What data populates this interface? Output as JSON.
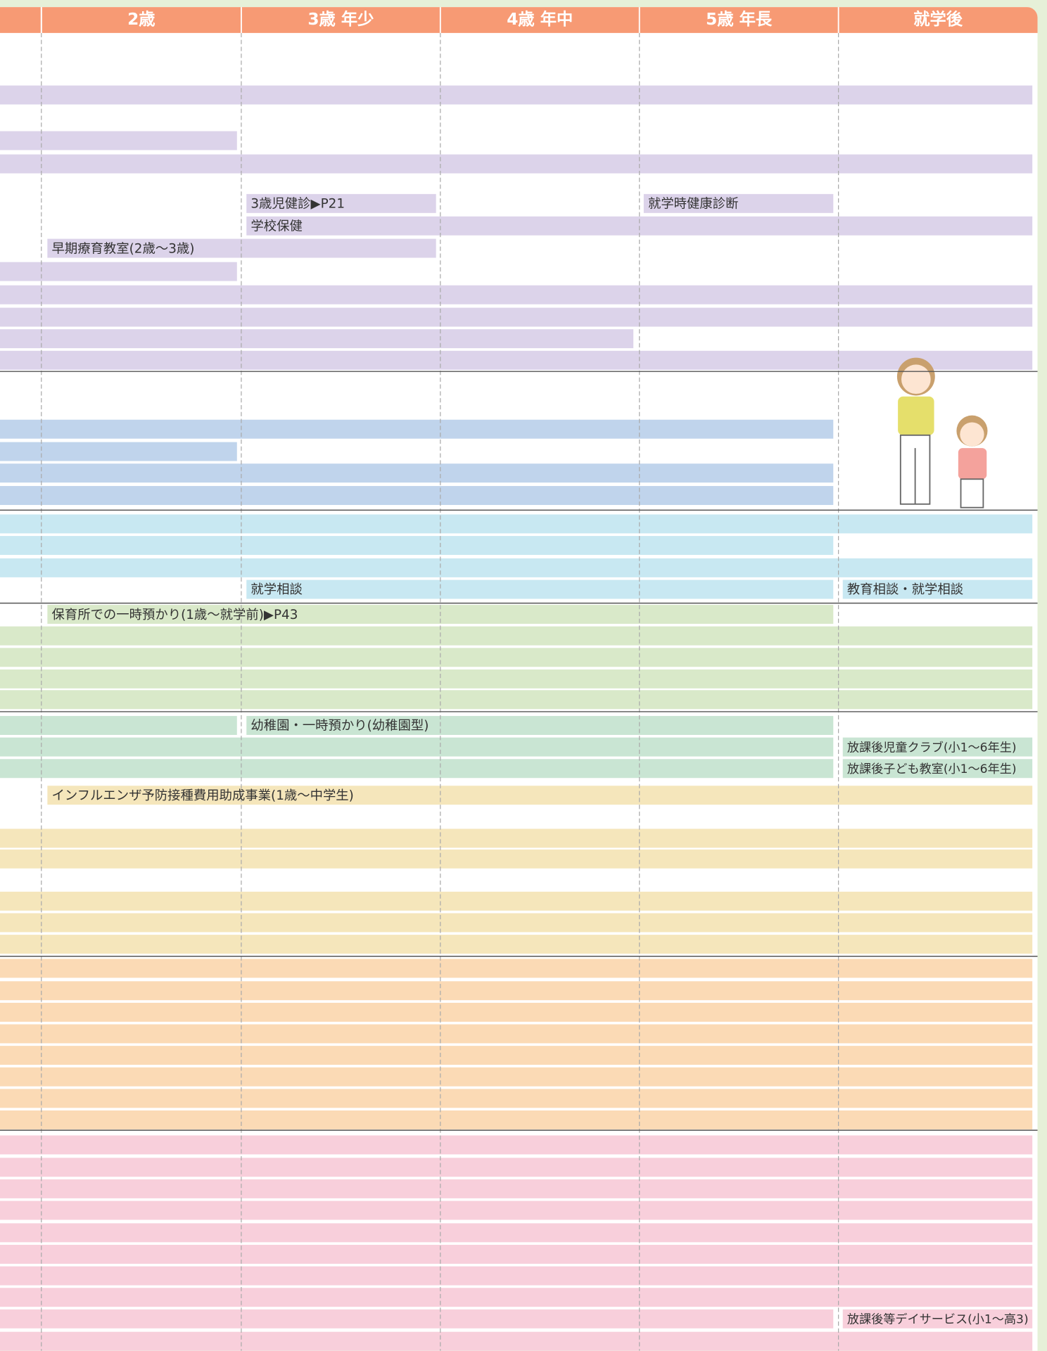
{
  "header": {
    "columns": [
      "2歳",
      "3歳 年少",
      "4歳 年中",
      "5歳 年長",
      "就学後"
    ]
  },
  "labels": [
    "3歳児健診▶P21",
    "就学時健康診断",
    "学校保健",
    "早期療育教室(2歳〜3歳)",
    "就学相談",
    "教育相談・就学相談",
    "保育所での一時預かり(1歳〜就学前)▶P43",
    "幼稚園・一時預かり(幼稚園型)",
    "放課後児童クラブ(小1〜6年生)",
    "放課後子ども教室(小1〜6年生)",
    "インフルエンザ予防接種費用助成事業(1歳〜中学生)",
    "放課後等デイサービス(小1〜高3)"
  ]
}
